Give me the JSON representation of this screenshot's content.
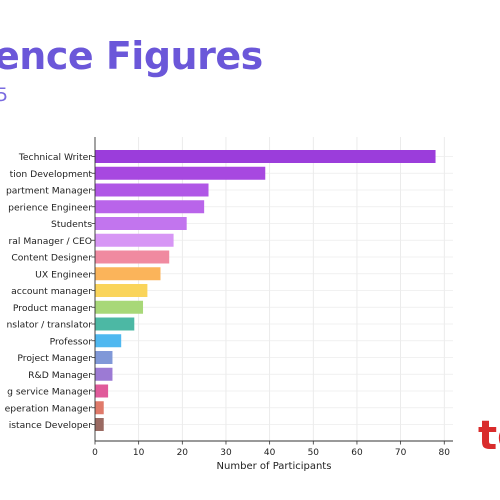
{
  "header": {
    "title": "ence Figures",
    "subtitle": "5"
  },
  "logo": {
    "text": "to",
    "color": "#d92b2b",
    "icon": "brand-logo"
  },
  "chart_data": {
    "type": "bar",
    "orientation": "horizontal",
    "xlabel": "Number of Participants",
    "xlim": [
      0,
      82
    ],
    "xticks": [
      0,
      10,
      20,
      30,
      40,
      50,
      60,
      70,
      80
    ],
    "grid": true,
    "categories": [
      "Technical Writer",
      "tion Development",
      "partment Manager",
      "perience Engineer",
      "Students",
      "ral Manager / CEO",
      "Content Designer",
      "UX Engineer",
      "account manager",
      "Product manager",
      "nslator / translator",
      "Professor",
      "Project Manager",
      "R&D Manager",
      "g service Manager",
      "eperation Manager",
      "istance Developer"
    ],
    "values": [
      78,
      39,
      26,
      25,
      21,
      18,
      17,
      15,
      12,
      11,
      9,
      6,
      4,
      4,
      3,
      2,
      2
    ],
    "colors": [
      "#9b3ddb",
      "#a748e0",
      "#b057e6",
      "#b964ea",
      "#c275ee",
      "#d796f5",
      "#f08aa0",
      "#fbb45a",
      "#fad45a",
      "#a8d878",
      "#4cb8a4",
      "#4fb8f0",
      "#8098d8",
      "#9c7ad4",
      "#e05a9a",
      "#e07a6a",
      "#9a6a62"
    ]
  }
}
